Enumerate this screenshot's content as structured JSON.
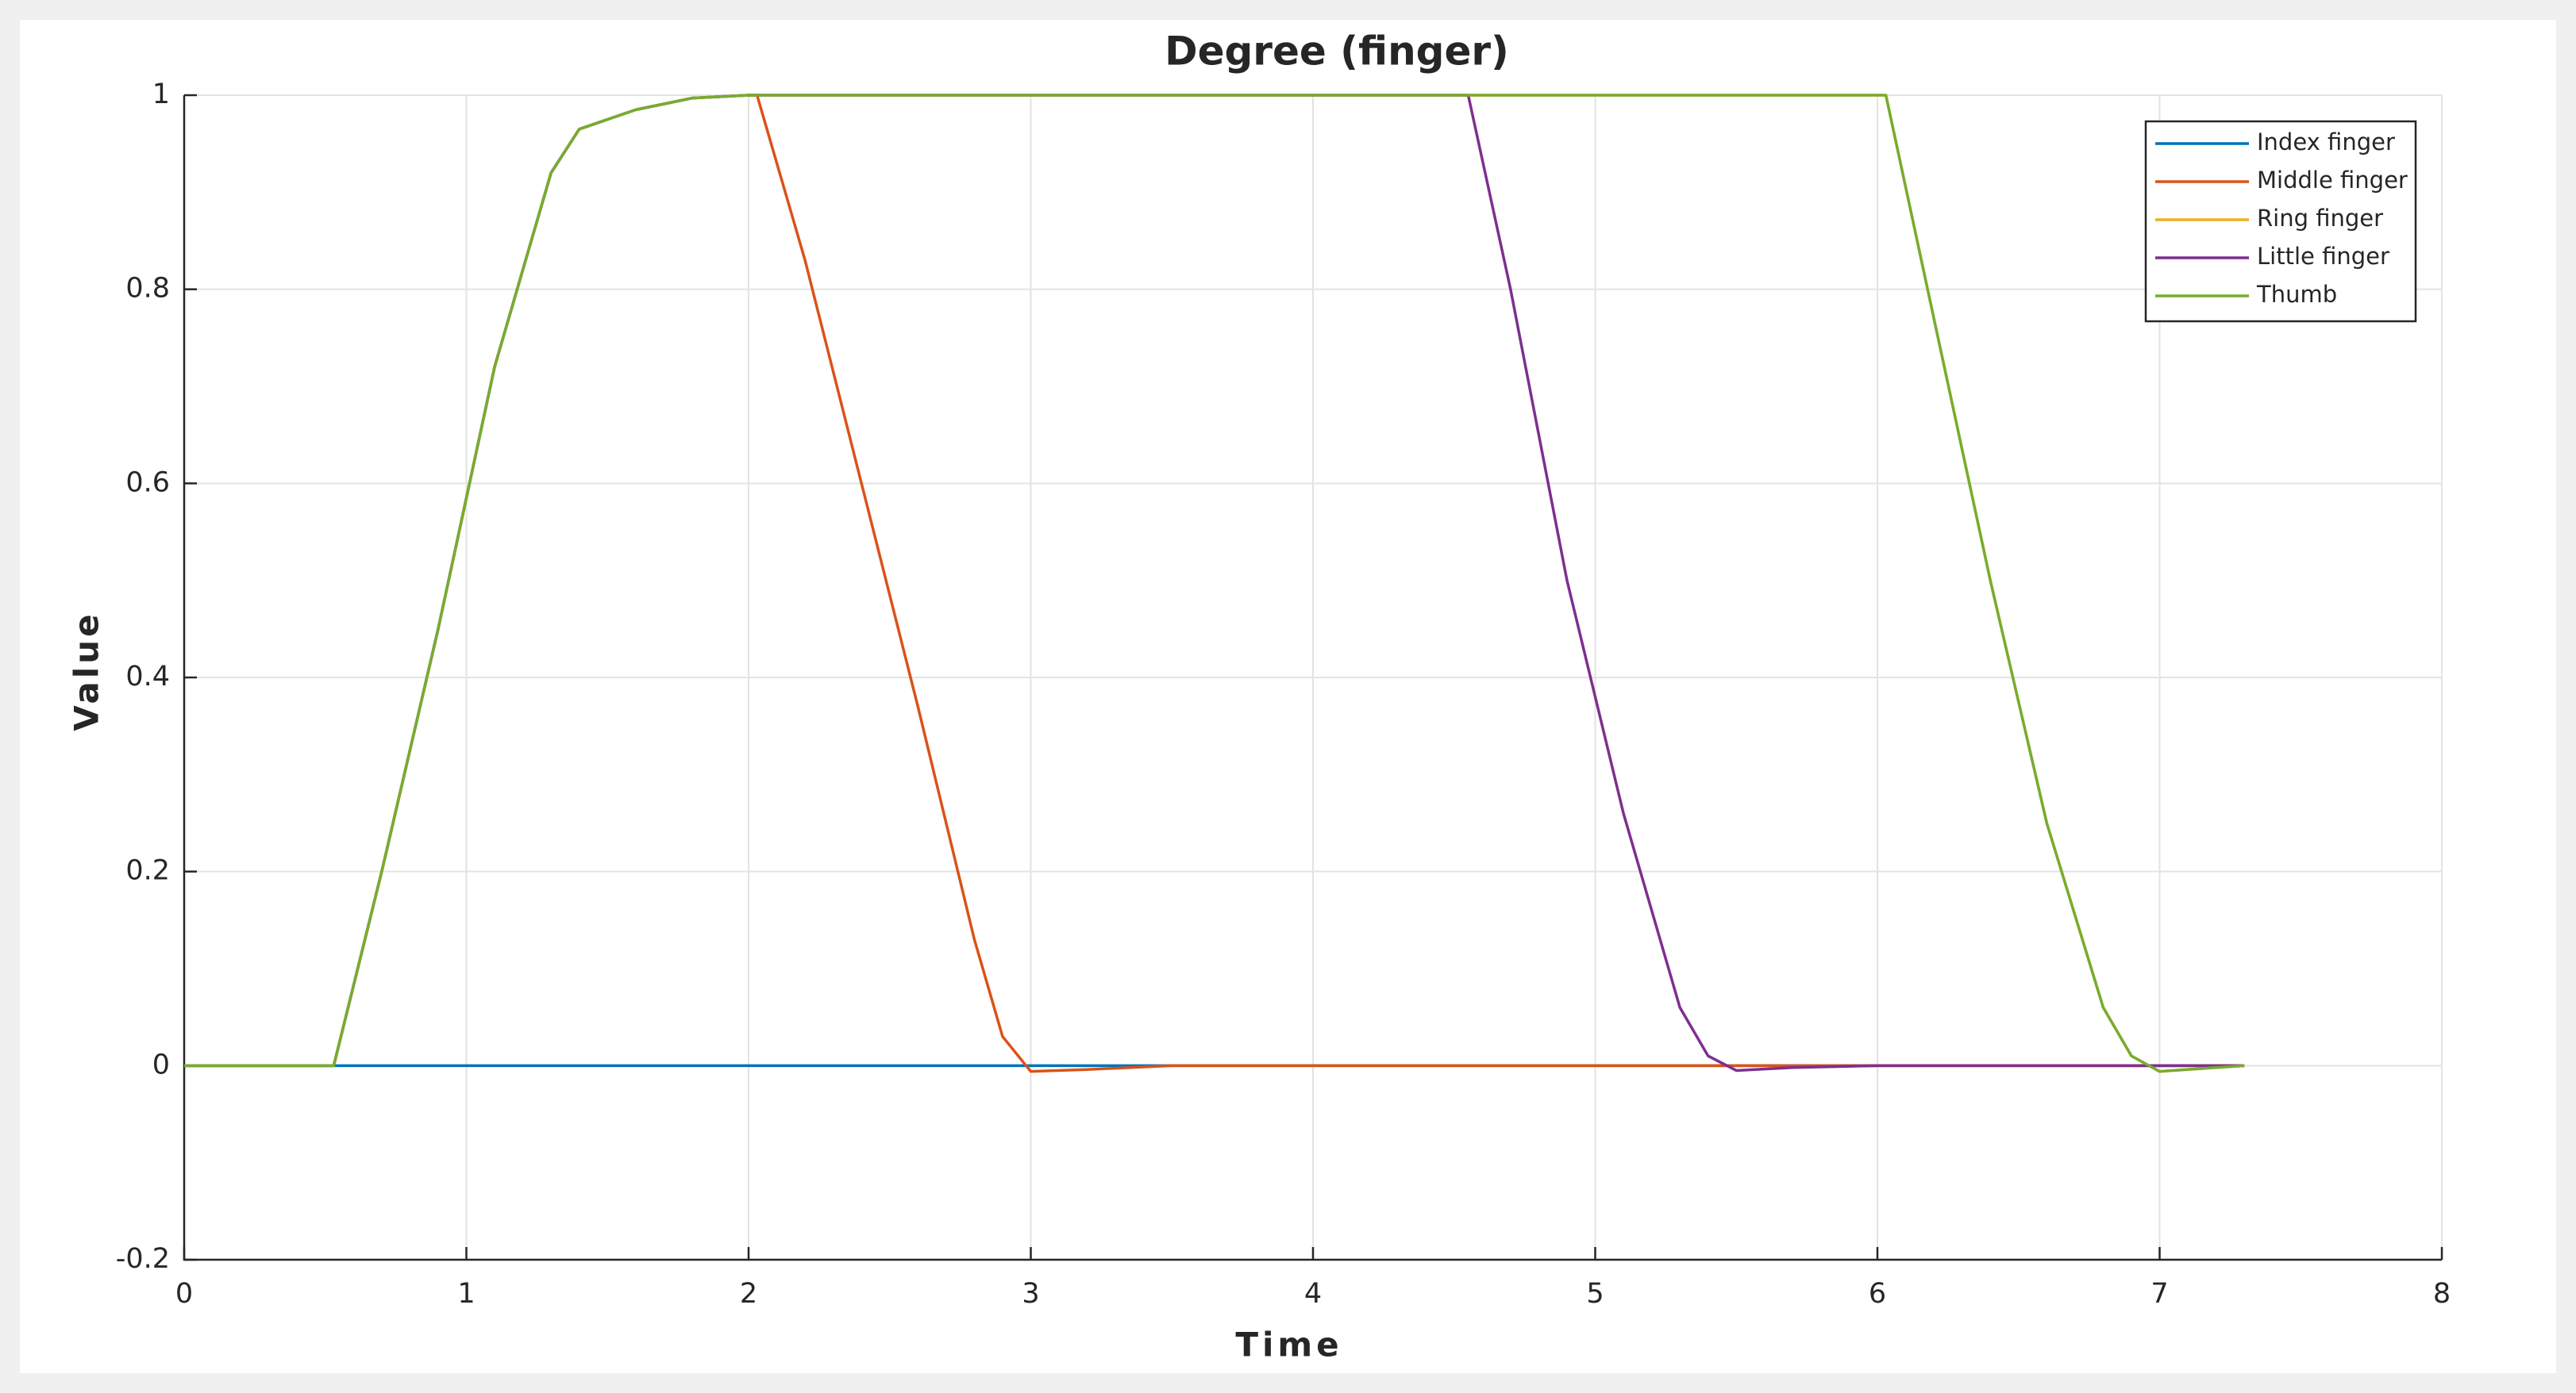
{
  "chart_data": {
    "type": "line",
    "title": "Degree (finger)",
    "x_label": "Time",
    "y_label": "Value",
    "x": [
      0,
      0.3,
      0.53,
      0.7,
      0.9,
      1.1,
      1.3,
      1.4,
      1.6,
      1.8,
      2.0,
      2.03,
      2.2,
      2.4,
      2.6,
      2.8,
      2.9,
      3.0,
      3.2,
      3.5,
      4.0,
      4.55,
      4.7,
      4.9,
      5.1,
      5.3,
      5.4,
      5.5,
      5.7,
      6.0,
      6.03,
      6.2,
      6.4,
      6.6,
      6.8,
      6.9,
      7.0,
      7.2,
      7.3
    ],
    "series": [
      {
        "name": "Index finger",
        "color": "#0072bd",
        "values": [
          0,
          0,
          0,
          0,
          0,
          0,
          0,
          0,
          0,
          0,
          0,
          0,
          0,
          0,
          0,
          0,
          0,
          0,
          0,
          0,
          0,
          0,
          0,
          0,
          0,
          0,
          0,
          0,
          0,
          0,
          0,
          0,
          0,
          0,
          0,
          0,
          0,
          0,
          0
        ]
      },
      {
        "name": "Middle finger",
        "color": "#d95319",
        "values": [
          0,
          0,
          0,
          0.2,
          0.45,
          0.72,
          0.92,
          0.965,
          0.985,
          0.997,
          1,
          1,
          0.83,
          0.6,
          0.37,
          0.13,
          0.03,
          -0.006,
          -0.004,
          0,
          0,
          0,
          0,
          0,
          0,
          0,
          0,
          0,
          0,
          0,
          0,
          0,
          0,
          0,
          0,
          0,
          0,
          0,
          0
        ]
      },
      {
        "name": "Ring finger",
        "color": "#edb120",
        "values": [
          0,
          0,
          0,
          0.2,
          0.45,
          0.72,
          0.92,
          0.965,
          0.985,
          0.997,
          1,
          1,
          1,
          1,
          1,
          1,
          1,
          1,
          1,
          1,
          1,
          1,
          1,
          1,
          1,
          1,
          1,
          1,
          1,
          1,
          1,
          0.77,
          0.5,
          0.25,
          0.06,
          0.01,
          -0.006,
          -0.002,
          0
        ]
      },
      {
        "name": "Little finger",
        "color": "#7e2f8e",
        "values": [
          0,
          0,
          0,
          0.2,
          0.45,
          0.72,
          0.92,
          0.965,
          0.985,
          0.997,
          1,
          1,
          1,
          1,
          1,
          1,
          1,
          1,
          1,
          1,
          1,
          1,
          0.8,
          0.5,
          0.26,
          0.06,
          0.01,
          -0.005,
          -0.002,
          0,
          0,
          0,
          0,
          0,
          0,
          0,
          0,
          0,
          0
        ]
      },
      {
        "name": "Thumb",
        "color": "#77ac30",
        "values": [
          0,
          0,
          0,
          0.2,
          0.45,
          0.72,
          0.92,
          0.965,
          0.985,
          0.997,
          1,
          1,
          1,
          1,
          1,
          1,
          1,
          1,
          1,
          1,
          1,
          1,
          1,
          1,
          1,
          1,
          1,
          1,
          1,
          1,
          1,
          0.77,
          0.5,
          0.25,
          0.06,
          0.01,
          -0.006,
          -0.002,
          0
        ]
      }
    ],
    "xlim": [
      0,
      8
    ],
    "ylim": [
      -0.2,
      1
    ],
    "xticks": [
      0,
      1,
      2,
      3,
      4,
      5,
      6,
      7,
      8
    ],
    "yticks": [
      -0.2,
      0,
      0.2,
      0.4,
      0.6,
      0.8,
      1
    ],
    "grid": true,
    "legend": "northeast"
  }
}
